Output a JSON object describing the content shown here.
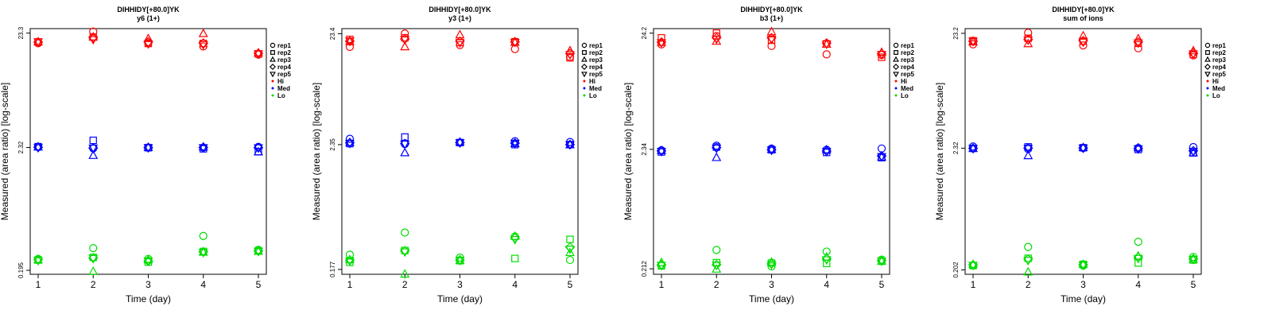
{
  "chart_data": [
    {
      "type": "scatter",
      "title": "DIHHIDY[+80.0]YK",
      "subtitle": "y6 (1+)",
      "xlabel": "Time (day)",
      "ylabel": "Measured (area ratio) [log-scale]",
      "x_ticks": [
        "1",
        "2",
        "3",
        "4",
        "5"
      ],
      "y_scale": "log",
      "y_ticks": [
        "23.3",
        "2.32",
        "0.195"
      ],
      "y_tick_values": [
        23.3,
        2.32,
        0.195
      ],
      "ylim": [
        0.18,
        25.5
      ],
      "legend": {
        "position": "right",
        "shapes": [
          {
            "label": "rep1",
            "shape": "circle"
          },
          {
            "label": "rep2",
            "shape": "square"
          },
          {
            "label": "rep3",
            "shape": "triangle"
          },
          {
            "label": "rep4",
            "shape": "diamond"
          },
          {
            "label": "rep5",
            "shape": "triangle-down"
          }
        ],
        "levels": [
          {
            "label": "Hi",
            "color": "#ff0000"
          },
          {
            "label": "Med",
            "color": "#0000ff"
          },
          {
            "label": "Lo",
            "color": "#00dd00"
          }
        ]
      },
      "series": [
        {
          "name": "Hi",
          "color": "#ff0000",
          "points": {
            "rep1": [
              19.0,
              24.0,
              19.0,
              17.8,
              15.1
            ],
            "rep2": [
              19.5,
              21.5,
              18.9,
              18.9,
              15.3
            ],
            "rep3": [
              19.5,
              21.5,
              20.8,
              23.0,
              15.6
            ],
            "rep4": [
              19.4,
              21.2,
              19.5,
              19.0,
              15.5
            ],
            "rep5": [
              19.6,
              20.5,
              18.8,
              18.5,
              15.4
            ]
          }
        },
        {
          "name": "Med",
          "color": "#0000ff",
          "points": {
            "rep1": [
              2.35,
              2.28,
              2.32,
              2.32,
              2.35
            ],
            "rep2": [
              2.36,
              2.68,
              2.31,
              2.26,
              2.13
            ],
            "rep3": [
              2.34,
              1.97,
              2.32,
              2.34,
              2.12
            ],
            "rep4": [
              2.33,
              2.3,
              2.31,
              2.32,
              2.31
            ],
            "rep5": [
              2.32,
              2.3,
              2.32,
              2.32,
              2.31
            ]
          }
        },
        {
          "name": "Lo",
          "color": "#00dd00",
          "points": {
            "rep1": [
              0.245,
              0.305,
              0.245,
              0.39,
              0.295
            ],
            "rep2": [
              0.24,
              0.253,
              0.23,
              0.285,
              0.29
            ],
            "rep3": [
              0.24,
              0.19,
              0.24,
              0.28,
              0.285
            ],
            "rep4": [
              0.243,
              0.25,
              0.235,
              0.283,
              0.288
            ],
            "rep5": [
              0.238,
              0.248,
              0.236,
              0.28,
              0.286
            ]
          }
        }
      ]
    },
    {
      "type": "scatter",
      "title": "DIHHIDY[+80.0]YK",
      "subtitle": "y3 (1+)",
      "xlabel": "Time (day)",
      "ylabel": "Measured (area ratio) [log-scale]",
      "x_ticks": [
        "1",
        "2",
        "3",
        "4",
        "5"
      ],
      "y_scale": "log",
      "y_ticks": [
        "23.4",
        "2.35",
        "0.177"
      ],
      "y_tick_values": [
        23.4,
        2.35,
        0.177
      ],
      "ylim": [
        0.16,
        26.0
      ],
      "legend": {
        "position": "right",
        "shapes": [
          {
            "label": "rep1",
            "shape": "circle"
          },
          {
            "label": "rep2",
            "shape": "square"
          },
          {
            "label": "rep3",
            "shape": "triangle"
          },
          {
            "label": "rep4",
            "shape": "diamond"
          },
          {
            "label": "rep5",
            "shape": "triangle-down"
          }
        ],
        "levels": [
          {
            "label": "Hi",
            "color": "#ff0000"
          },
          {
            "label": "Med",
            "color": "#0000ff"
          },
          {
            "label": "Lo",
            "color": "#00dd00"
          }
        ]
      },
      "series": [
        {
          "name": "Hi",
          "color": "#ff0000",
          "points": {
            "rep1": [
              17.8,
              23.5,
              18.5,
              17.0,
              14.5
            ],
            "rep2": [
              20.8,
              21.5,
              19.5,
              19.8,
              14.2
            ],
            "rep3": [
              19.8,
              17.8,
              22.8,
              19.5,
              16.4
            ],
            "rep4": [
              20.0,
              21.0,
              20.0,
              19.8,
              15.5
            ],
            "rep5": [
              20.2,
              20.8,
              19.5,
              19.6,
              15.2
            ]
          }
        },
        {
          "name": "Med",
          "color": "#0000ff",
          "points": {
            "rep1": [
              2.65,
              2.38,
              2.45,
              2.52,
              2.48
            ],
            "rep2": [
              2.4,
              2.75,
              2.45,
              2.35,
              2.35
            ],
            "rep3": [
              2.45,
              1.98,
              2.47,
              2.4,
              2.34
            ],
            "rep4": [
              2.44,
              2.4,
              2.45,
              2.42,
              2.35
            ],
            "rep5": [
              2.42,
              2.38,
              2.45,
              2.42,
              2.35
            ]
          }
        },
        {
          "name": "Lo",
          "color": "#00dd00",
          "points": {
            "rep1": [
              0.24,
              0.38,
              0.226,
              0.35,
              0.215
            ],
            "rep2": [
              0.205,
              0.262,
              0.212,
              0.222,
              0.33
            ],
            "rep3": [
              0.216,
              0.16,
              0.213,
              0.35,
              0.25
            ],
            "rep4": [
              0.214,
              0.26,
              0.215,
              0.34,
              0.28
            ],
            "rep5": [
              0.212,
              0.255,
              0.214,
              0.33,
              0.27
            ]
          }
        }
      ]
    },
    {
      "type": "scatter",
      "title": "DIHHIDY[+80.0]YK",
      "subtitle": "b3 (1+)",
      "xlabel": "Time (day)",
      "ylabel": "Measured (area ratio) [log-scale]",
      "x_ticks": [
        "1",
        "2",
        "3",
        "4",
        "5"
      ],
      "y_scale": "log",
      "y_ticks": [
        "24.2",
        "2.34",
        "0.212"
      ],
      "y_tick_values": [
        24.2,
        2.34,
        0.212
      ],
      "ylim": [
        0.19,
        26.5
      ],
      "legend": {
        "position": "right",
        "shapes": [
          {
            "label": "rep1",
            "shape": "circle"
          },
          {
            "label": "rep2",
            "shape": "square"
          },
          {
            "label": "rep3",
            "shape": "triangle"
          },
          {
            "label": "rep4",
            "shape": "diamond"
          },
          {
            "label": "rep5",
            "shape": "triangle-down"
          }
        ],
        "levels": [
          {
            "label": "Hi",
            "color": "#ff0000"
          },
          {
            "label": "Med",
            "color": "#0000ff"
          },
          {
            "label": "Lo",
            "color": "#00dd00"
          }
        ]
      },
      "series": [
        {
          "name": "Hi",
          "color": "#ff0000",
          "points": {
            "rep1": [
              19.3,
              22.8,
              18.7,
              15.8,
              15.6
            ],
            "rep2": [
              22.0,
              24.2,
              21.0,
              19.5,
              14.9
            ],
            "rep3": [
              20.0,
              20.5,
              24.8,
              19.3,
              16.4
            ],
            "rep4": [
              20.2,
              22.0,
              22.0,
              19.8,
              16.0
            ],
            "rep5": [
              20.0,
              21.5,
              21.5,
              19.5,
              15.8
            ]
          }
        },
        {
          "name": "Med",
          "color": "#0000ff",
          "points": {
            "rep1": [
              2.3,
              2.52,
              2.38,
              2.32,
              2.38
            ],
            "rep2": [
              2.22,
              2.45,
              2.32,
              2.2,
              1.98
            ],
            "rep3": [
              2.28,
              1.98,
              2.33,
              2.31,
              2.0
            ],
            "rep4": [
              2.27,
              2.42,
              2.32,
              2.26,
              2.05
            ],
            "rep5": [
              2.25,
              2.4,
              2.31,
              2.25,
              2.03
            ]
          }
        },
        {
          "name": "Lo",
          "color": "#00dd00",
          "points": {
            "rep1": [
              0.225,
              0.31,
              0.223,
              0.3,
              0.255
            ],
            "rep2": [
              0.225,
              0.24,
              0.238,
              0.236,
              0.247
            ],
            "rep3": [
              0.24,
              0.21,
              0.242,
              0.268,
              0.247
            ],
            "rep4": [
              0.23,
              0.23,
              0.235,
              0.26,
              0.25
            ],
            "rep5": [
              0.228,
              0.228,
              0.232,
              0.255,
              0.248
            ]
          }
        }
      ]
    },
    {
      "type": "scatter",
      "title": "DIHHIDY[+80.0]YK",
      "subtitle": "sum of ions",
      "xlabel": "Time (day)",
      "ylabel": "Measured (area ratio) [log-scale]",
      "x_ticks": [
        "1",
        "2",
        "3",
        "4",
        "5"
      ],
      "y_scale": "log",
      "y_ticks": [
        "23.2",
        "2.32",
        "0.202"
      ],
      "y_tick_values": [
        23.2,
        2.32,
        0.202
      ],
      "ylim": [
        0.185,
        25.5
      ],
      "legend": {
        "position": "right",
        "shapes": [
          {
            "label": "rep1",
            "shape": "circle"
          },
          {
            "label": "rep2",
            "shape": "square"
          },
          {
            "label": "rep3",
            "shape": "triangle"
          },
          {
            "label": "rep4",
            "shape": "diamond"
          },
          {
            "label": "rep5",
            "shape": "triangle-down"
          }
        ],
        "levels": [
          {
            "label": "Hi",
            "color": "#ff0000"
          },
          {
            "label": "Med",
            "color": "#0000ff"
          },
          {
            "label": "Lo",
            "color": "#00dd00"
          }
        ]
      },
      "series": [
        {
          "name": "Hi",
          "color": "#ff0000",
          "points": {
            "rep1": [
              18.6,
              23.5,
              18.2,
              17.2,
              14.9
            ],
            "rep2": [
              20.0,
              21.0,
              19.8,
              19.0,
              15.2
            ],
            "rep3": [
              19.5,
              18.8,
              22.0,
              20.8,
              16.3
            ],
            "rep4": [
              19.8,
              20.5,
              20.0,
              19.5,
              15.6
            ],
            "rep5": [
              19.8,
              20.3,
              19.5,
              19.2,
              15.4
            ]
          }
        },
        {
          "name": "Med",
          "color": "#0000ff",
          "points": {
            "rep1": [
              2.4,
              2.28,
              2.33,
              2.33,
              2.37
            ],
            "rep2": [
              2.31,
              2.38,
              2.34,
              2.26,
              2.11
            ],
            "rep3": [
              2.3,
              1.99,
              2.34,
              2.33,
              2.11
            ],
            "rep4": [
              2.31,
              2.33,
              2.33,
              2.3,
              2.2
            ],
            "rep5": [
              2.31,
              2.32,
              2.33,
              2.3,
              2.18
            ]
          }
        },
        {
          "name": "Lo",
          "color": "#00dd00",
          "points": {
            "rep1": [
              0.222,
              0.32,
              0.22,
              0.355,
              0.262
            ],
            "rep2": [
              0.22,
              0.255,
              0.226,
              0.232,
              0.246
            ],
            "rep3": [
              0.225,
              0.193,
              0.225,
              0.266,
              0.25
            ],
            "rep4": [
              0.223,
              0.25,
              0.224,
              0.26,
              0.252
            ],
            "rep5": [
              0.222,
              0.245,
              0.223,
              0.255,
              0.25
            ]
          }
        }
      ]
    }
  ]
}
